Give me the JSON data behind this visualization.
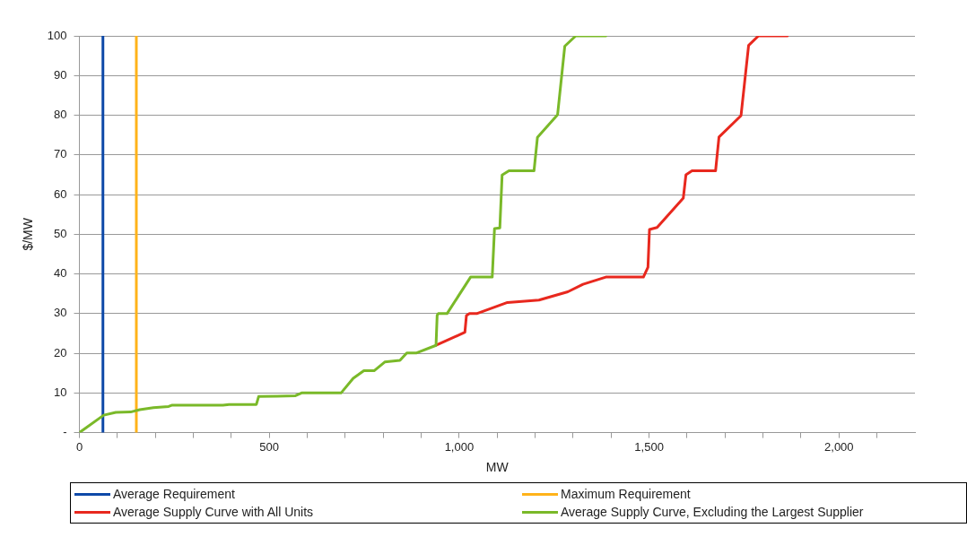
{
  "chart_data": {
    "type": "line",
    "xlabel": "MW",
    "ylabel": "$/MW",
    "xlim": [
      0,
      2200
    ],
    "xticks": [
      0,
      {
        "value": 100,
        "label": null
      },
      {
        "value": 200,
        "label": null
      },
      {
        "value": 300,
        "label": null
      },
      {
        "value": 400,
        "label": null
      },
      500,
      {
        "value": 600,
        "label": null
      },
      {
        "value": 700,
        "label": null
      },
      {
        "value": 800,
        "label": null
      },
      {
        "value": 900,
        "label": null
      },
      {
        "value": 1000,
        "label": "1,000"
      },
      {
        "value": 1100,
        "label": null
      },
      {
        "value": 1200,
        "label": null
      },
      {
        "value": 1300,
        "label": null
      },
      {
        "value": 1400,
        "label": null
      },
      {
        "value": 1500,
        "label": "1,500"
      },
      {
        "value": 1600,
        "label": null
      },
      {
        "value": 1700,
        "label": null
      },
      {
        "value": 1800,
        "label": null
      },
      {
        "value": 1900,
        "label": null
      },
      {
        "value": 2000,
        "label": "2,000"
      },
      {
        "value": 2100,
        "label": null
      }
    ],
    "ylim": [
      0,
      100
    ],
    "yticks": [
      {
        "value": 0,
        "label": "-"
      },
      10,
      20,
      30,
      40,
      50,
      60,
      70,
      80,
      90,
      100
    ],
    "grid": "y",
    "legend": "bottom",
    "marker": "none",
    "line_style": "solid",
    "series": [
      {
        "name": "Average Requirement",
        "color": "#0e49a8",
        "x": [
          62,
          62
        ],
        "values": [
          0,
          100
        ]
      },
      {
        "name": "Maximum Requirement",
        "color": "#ffb31a",
        "x": [
          150,
          150
        ],
        "values": [
          0,
          100
        ]
      },
      {
        "name": "Average Supply Curve with All Units",
        "color": "#e8281e",
        "x": [
          939,
          1015,
          1019,
          1027,
          1046,
          1127,
          1210,
          1286,
          1326,
          1386,
          1485,
          1497,
          1501,
          1521,
          1590,
          1597,
          1613,
          1675,
          1684,
          1742,
          1762,
          1788,
          1864
        ],
        "values": [
          22,
          25.3,
          29.5,
          30,
          30,
          32.8,
          33.4,
          35.5,
          37.4,
          39.2,
          39.2,
          41.7,
          51.2,
          51.7,
          59.1,
          65,
          66,
          66,
          74.5,
          79.9,
          97.6,
          100,
          100
        ]
      },
      {
        "name": "Average Supply Curve, Excluding the Largest Supplier",
        "color": "#7ab929",
        "x": [
          0,
          64,
          96,
          135,
          159,
          195,
          235,
          243,
          378,
          394,
          466,
          472,
          521,
          569,
          585,
          689,
          721,
          749,
          776,
          804,
          844,
          862,
          888,
          939,
          942,
          945,
          968,
          1030,
          1087,
          1093,
          1107,
          1113,
          1131,
          1197,
          1206,
          1259,
          1278,
          1307,
          1386
        ],
        "values": [
          0,
          4.4,
          5.1,
          5.2,
          5.8,
          6.3,
          6.6,
          6.9,
          6.9,
          7.1,
          7.1,
          9.1,
          9.2,
          9.3,
          10,
          10,
          13.7,
          15.6,
          15.6,
          17.8,
          18.2,
          20.1,
          20.1,
          22,
          29.6,
          30,
          30,
          39.2,
          39.2,
          51.4,
          51.6,
          64.9,
          66,
          66,
          74.4,
          80.1,
          97.4,
          100,
          100
        ]
      }
    ]
  }
}
